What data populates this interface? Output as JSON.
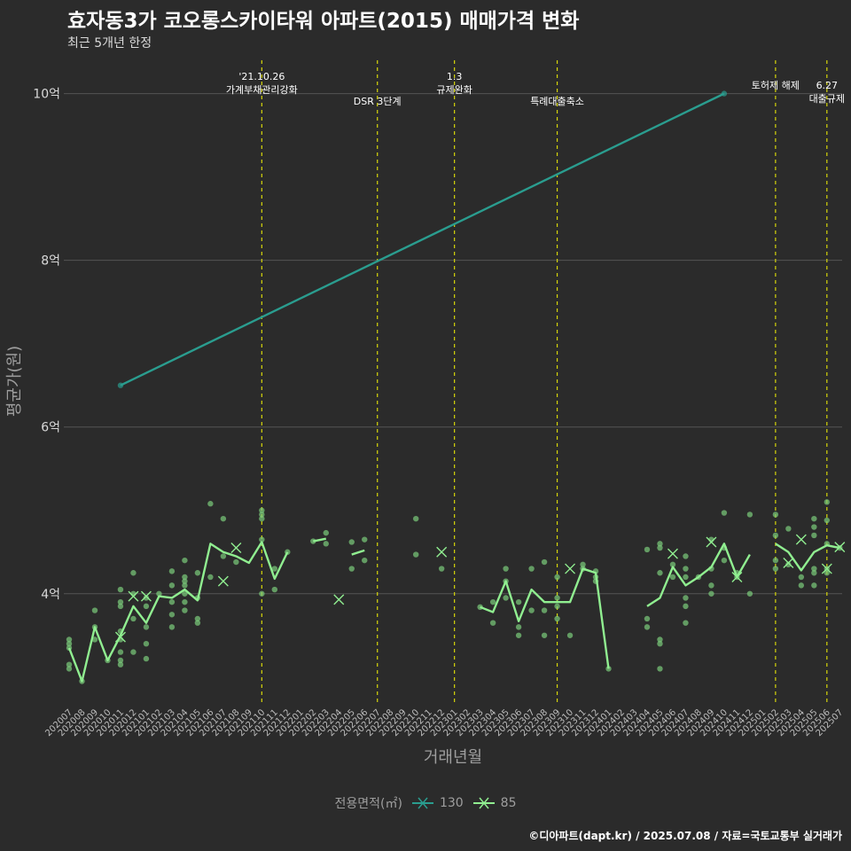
{
  "title": "효자동3가 코오롱스카이타워 아파트(2015) 매매가격 변화",
  "subtitle": "최근 5개년 한정",
  "caption": "©디아파트(dapt.kr) / 2025.07.08 / 자료=국토교통부 실거래가",
  "colors": {
    "background": "#2b2b2b",
    "grid": "#555555",
    "event_line": "#d6d60a",
    "s130": "#2a9d8f",
    "s85": "#90ee90",
    "s85_point": "#7ccd7c"
  },
  "chart_data": {
    "type": "line",
    "xlabel": "거래년월",
    "ylabel": "평균가(원)",
    "ylim": [
      2.7,
      10.4
    ],
    "yticks": [
      {
        "v": 4,
        "label": "4억"
      },
      {
        "v": 6,
        "label": "6억"
      },
      {
        "v": 8,
        "label": "8억"
      },
      {
        "v": 10,
        "label": "10억"
      }
    ],
    "x_categories": [
      "202007",
      "202008",
      "202009",
      "202010",
      "202011",
      "202012",
      "202101",
      "202102",
      "202103",
      "202104",
      "202105",
      "202106",
      "202107",
      "202108",
      "202109",
      "202110",
      "202111",
      "202112",
      "202201",
      "202202",
      "202203",
      "202204",
      "202205",
      "202206",
      "202207",
      "202208",
      "202209",
      "202210",
      "202211",
      "202212",
      "202301",
      "202302",
      "202303",
      "202304",
      "202305",
      "202306",
      "202307",
      "202308",
      "202309",
      "202310",
      "202311",
      "202312",
      "202401",
      "202402",
      "202403",
      "202404",
      "202405",
      "202406",
      "202407",
      "202408",
      "202409",
      "202410",
      "202411",
      "202412",
      "202501",
      "202502",
      "202503",
      "202504",
      "202505",
      "202506",
      "202507"
    ],
    "legend_title": "전용면적(㎡)",
    "events": [
      {
        "x": "202110",
        "label": "'21.10.26\n가계부채관리강화",
        "row": 0
      },
      {
        "x": "202207",
        "label": "DSR 3단계",
        "row": 2
      },
      {
        "x": "202301",
        "label": "1.3\n규제완화",
        "row": 0
      },
      {
        "x": "202309",
        "label": "특례대출축소",
        "row": 2
      },
      {
        "x": "202502",
        "label": "토허제 해제",
        "row": 1
      },
      {
        "x": "202506",
        "label": "6.27\n대출규제",
        "row": 1
      }
    ],
    "series": [
      {
        "name": "130",
        "color": "#2a9d8f",
        "line": [
          [
            "202011",
            6.5
          ],
          [
            "202410",
            10.0
          ]
        ],
        "points": [
          [
            "202011",
            6.5
          ],
          [
            "202410",
            10.0
          ]
        ],
        "x_marks": []
      },
      {
        "name": "85",
        "color": "#90ee90",
        "line": [
          [
            "202007",
            3.35
          ],
          [
            "202008",
            2.95
          ],
          [
            "202009",
            3.6
          ],
          [
            "202010",
            3.2
          ],
          [
            "202011",
            3.5
          ],
          [
            "202012",
            3.85
          ],
          [
            "202101",
            3.65
          ],
          [
            "202102",
            3.97
          ],
          [
            "202103",
            3.95
          ],
          [
            "202104",
            4.05
          ],
          [
            "202105",
            3.92
          ],
          [
            "202106",
            4.6
          ],
          [
            "202107",
            4.5
          ],
          [
            "202108",
            4.45
          ],
          [
            "202109",
            4.37
          ],
          [
            "202110",
            4.62
          ],
          [
            "202111",
            4.18
          ],
          [
            "202112",
            4.5
          ],
          null,
          [
            "202202",
            4.63
          ],
          [
            "202203",
            4.66
          ],
          null,
          [
            "202205",
            4.47
          ],
          [
            "202206",
            4.52
          ],
          null,
          [
            "202303",
            3.84
          ],
          [
            "202304",
            3.78
          ],
          [
            "202305",
            4.15
          ],
          [
            "202306",
            3.67
          ],
          [
            "202307",
            4.05
          ],
          [
            "202308",
            3.9
          ],
          [
            "202309",
            3.9
          ],
          [
            "202310",
            3.9
          ],
          [
            "202311",
            4.3
          ],
          [
            "202312",
            4.25
          ],
          [
            "202401",
            3.1
          ],
          null,
          [
            "202404",
            3.85
          ],
          [
            "202405",
            3.95
          ],
          [
            "202406",
            4.32
          ],
          [
            "202407",
            4.1
          ],
          [
            "202408",
            4.2
          ],
          [
            "202409",
            4.32
          ],
          [
            "202410",
            4.6
          ],
          [
            "202411",
            4.2
          ],
          [
            "202412",
            4.47
          ],
          null,
          [
            "202502",
            4.6
          ],
          [
            "202503",
            4.5
          ],
          [
            "202504",
            4.28
          ],
          [
            "202505",
            4.5
          ],
          [
            "202506",
            4.58
          ],
          [
            "202507",
            4.55
          ]
        ],
        "points": [
          [
            "202007",
            3.45
          ],
          [
            "202007",
            3.4
          ],
          [
            "202007",
            3.35
          ],
          [
            "202007",
            3.15
          ],
          [
            "202007",
            3.1
          ],
          [
            "202008",
            2.95
          ],
          [
            "202009",
            3.8
          ],
          [
            "202009",
            3.6
          ],
          [
            "202009",
            3.45
          ],
          [
            "202010",
            3.2
          ],
          [
            "202011",
            4.05
          ],
          [
            "202011",
            3.9
          ],
          [
            "202011",
            3.85
          ],
          [
            "202011",
            3.55
          ],
          [
            "202011",
            3.45
          ],
          [
            "202011",
            3.3
          ],
          [
            "202011",
            3.2
          ],
          [
            "202011",
            3.15
          ],
          [
            "202012",
            4.25
          ],
          [
            "202012",
            4.0
          ],
          [
            "202012",
            3.7
          ],
          [
            "202012",
            3.3
          ],
          [
            "202101",
            3.95
          ],
          [
            "202101",
            3.85
          ],
          [
            "202101",
            3.6
          ],
          [
            "202101",
            3.4
          ],
          [
            "202101",
            3.22
          ],
          [
            "202102",
            4.0
          ],
          [
            "202103",
            4.27
          ],
          [
            "202103",
            4.1
          ],
          [
            "202103",
            3.9
          ],
          [
            "202103",
            3.75
          ],
          [
            "202103",
            3.6
          ],
          [
            "202104",
            4.4
          ],
          [
            "202104",
            4.2
          ],
          [
            "202104",
            4.15
          ],
          [
            "202104",
            4.1
          ],
          [
            "202104",
            4.0
          ],
          [
            "202104",
            3.9
          ],
          [
            "202104",
            3.8
          ],
          [
            "202105",
            4.25
          ],
          [
            "202105",
            3.95
          ],
          [
            "202105",
            3.7
          ],
          [
            "202105",
            3.65
          ],
          [
            "202106",
            5.08
          ],
          [
            "202106",
            4.2
          ],
          [
            "202107",
            4.9
          ],
          [
            "202107",
            4.45
          ],
          [
            "202108",
            4.38
          ],
          [
            "202110",
            5.0
          ],
          [
            "202110",
            4.95
          ],
          [
            "202110",
            4.9
          ],
          [
            "202110",
            4.65
          ],
          [
            "202110",
            4.0
          ],
          [
            "202111",
            4.3
          ],
          [
            "202111",
            4.05
          ],
          [
            "202112",
            4.5
          ],
          [
            "202202",
            4.63
          ],
          [
            "202203",
            4.73
          ],
          [
            "202203",
            4.6
          ],
          [
            "202205",
            4.62
          ],
          [
            "202205",
            4.3
          ],
          [
            "202206",
            4.65
          ],
          [
            "202206",
            4.4
          ],
          [
            "202210",
            4.9
          ],
          [
            "202210",
            4.47
          ],
          [
            "202212",
            4.3
          ],
          [
            "202303",
            3.84
          ],
          [
            "202304",
            3.9
          ],
          [
            "202304",
            3.65
          ],
          [
            "202305",
            4.3
          ],
          [
            "202305",
            4.15
          ],
          [
            "202305",
            3.95
          ],
          [
            "202306",
            3.9
          ],
          [
            "202306",
            3.6
          ],
          [
            "202306",
            3.5
          ],
          [
            "202307",
            4.3
          ],
          [
            "202307",
            3.8
          ],
          [
            "202308",
            4.38
          ],
          [
            "202308",
            3.8
          ],
          [
            "202308",
            3.5
          ],
          [
            "202309",
            4.2
          ],
          [
            "202309",
            3.95
          ],
          [
            "202309",
            3.85
          ],
          [
            "202309",
            3.7
          ],
          [
            "202310",
            3.5
          ],
          [
            "202311",
            4.35
          ],
          [
            "202311",
            4.3
          ],
          [
            "202312",
            4.27
          ],
          [
            "202312",
            4.2
          ],
          [
            "202312",
            4.15
          ],
          [
            "202401",
            3.1
          ],
          [
            "202404",
            4.53
          ],
          [
            "202404",
            3.7
          ],
          [
            "202404",
            3.6
          ],
          [
            "202405",
            4.6
          ],
          [
            "202405",
            4.55
          ],
          [
            "202405",
            4.25
          ],
          [
            "202405",
            3.45
          ],
          [
            "202405",
            3.4
          ],
          [
            "202405",
            3.1
          ],
          [
            "202406",
            4.35
          ],
          [
            "202406",
            4.2
          ],
          [
            "202407",
            4.45
          ],
          [
            "202407",
            4.3
          ],
          [
            "202407",
            4.2
          ],
          [
            "202407",
            3.95
          ],
          [
            "202407",
            3.85
          ],
          [
            "202407",
            3.65
          ],
          [
            "202408",
            4.2
          ],
          [
            "202409",
            4.65
          ],
          [
            "202409",
            4.3
          ],
          [
            "202409",
            4.1
          ],
          [
            "202409",
            4.0
          ],
          [
            "202410",
            4.97
          ],
          [
            "202410",
            4.55
          ],
          [
            "202410",
            4.4
          ],
          [
            "202411",
            4.25
          ],
          [
            "202411",
            4.2
          ],
          [
            "202412",
            4.95
          ],
          [
            "202412",
            4.0
          ],
          [
            "202502",
            4.95
          ],
          [
            "202502",
            4.7
          ],
          [
            "202502",
            4.4
          ],
          [
            "202502",
            4.3
          ],
          [
            "202503",
            4.78
          ],
          [
            "202503",
            4.35
          ],
          [
            "202504",
            4.2
          ],
          [
            "202504",
            4.1
          ],
          [
            "202505",
            4.9
          ],
          [
            "202505",
            4.8
          ],
          [
            "202505",
            4.7
          ],
          [
            "202505",
            4.3
          ],
          [
            "202505",
            4.25
          ],
          [
            "202505",
            4.1
          ],
          [
            "202506",
            5.1
          ],
          [
            "202506",
            4.88
          ],
          [
            "202506",
            4.6
          ],
          [
            "202506",
            4.3
          ],
          [
            "202506",
            4.25
          ],
          [
            "202507",
            4.55
          ]
        ],
        "x_marks": [
          [
            "202011",
            3.48
          ],
          [
            "202012",
            3.97
          ],
          [
            "202101",
            3.97
          ],
          [
            "202108",
            4.55
          ],
          [
            "202107",
            4.15
          ],
          [
            "202204",
            3.93
          ],
          [
            "202212",
            4.5
          ],
          [
            "202310",
            4.3
          ],
          [
            "202406",
            4.48
          ],
          [
            "202409",
            4.62
          ],
          [
            "202411",
            4.2
          ],
          [
            "202503",
            4.37
          ],
          [
            "202504",
            4.65
          ],
          [
            "202506",
            4.3
          ],
          [
            "202507",
            4.56
          ]
        ]
      }
    ]
  }
}
